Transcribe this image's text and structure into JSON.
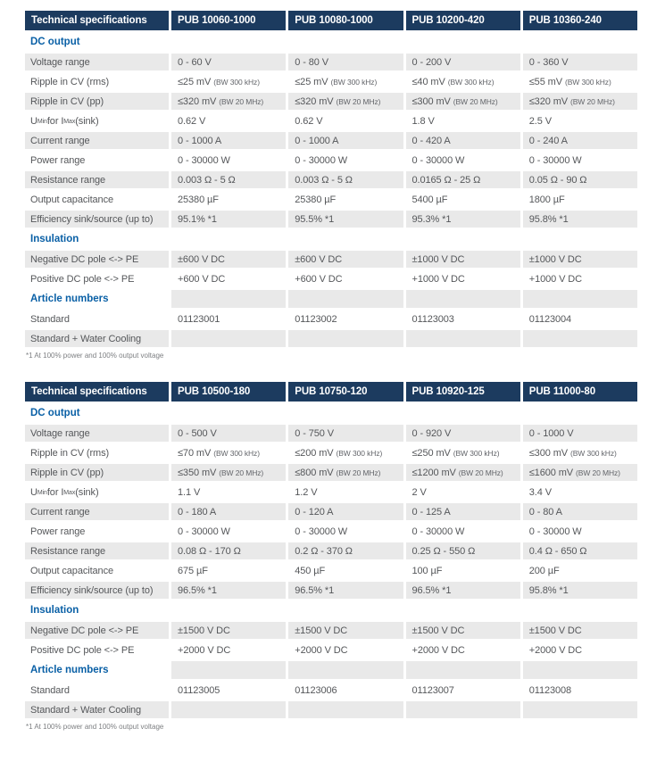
{
  "colors": {
    "header_bg": "#1c3b5f",
    "header_text": "#ffffff",
    "section_text": "#0a60a6",
    "row_shade": "#e9e9e9",
    "body_text": "#55575a"
  },
  "tables": [
    {
      "header": {
        "title": "Technical specifications",
        "products": [
          "PUB 10060-1000",
          "PUB 10080-1000",
          "PUB 10200-420",
          "PUB 10360-240"
        ]
      },
      "rows": [
        {
          "kind": "section",
          "label": "DC output"
        },
        {
          "kind": "data",
          "label": "Voltage range",
          "values": [
            "0 - 60 V",
            "0 - 80 V",
            "0 - 200 V",
            "0 - 360 V"
          ]
        },
        {
          "kind": "data",
          "label": "Ripple in CV (rms)",
          "values": [
            "≤25 mV",
            "≤25 mV",
            "≤40 mV",
            "≤55 mV"
          ],
          "value_note": "(BW 300 kHz)"
        },
        {
          "kind": "data",
          "label": "Ripple in CV (pp)",
          "values": [
            "≤320 mV",
            "≤320 mV",
            "≤300 mV",
            "≤320 mV"
          ],
          "value_note": "(BW 20 MHz)"
        },
        {
          "kind": "data",
          "label": "U_{Min} for I_{Max} (sink)",
          "values": [
            "0.62 V",
            "0.62 V",
            "1.8 V",
            "2.5 V"
          ]
        },
        {
          "kind": "data",
          "label": "Current range",
          "values": [
            "0 - 1000 A",
            "0 - 1000 A",
            "0 - 420 A",
            "0 - 240 A"
          ]
        },
        {
          "kind": "data",
          "label": "Power range",
          "values": [
            "0 - 30000 W",
            "0 - 30000 W",
            "0 - 30000 W",
            "0 - 30000 W"
          ]
        },
        {
          "kind": "data",
          "label": "Resistance range",
          "values": [
            "0.003 Ω - 5 Ω",
            "0.003 Ω - 5 Ω",
            "0.0165 Ω - 25 Ω",
            "0.05 Ω - 90 Ω"
          ]
        },
        {
          "kind": "data",
          "label": "Output capacitance",
          "values": [
            "25380 µF",
            "25380 µF",
            "5400 µF",
            "1800 µF"
          ]
        },
        {
          "kind": "data",
          "label": "Efficiency sink/source (up to)",
          "values": [
            "95.1% *1",
            "95.5% *1",
            "95.3% *1",
            "95.8% *1"
          ]
        },
        {
          "kind": "section",
          "label": "Insulation"
        },
        {
          "kind": "data",
          "label": "Negative DC pole <-> PE",
          "values": [
            "±600 V DC",
            "±600 V DC",
            "±1000 V DC",
            "±1000 V DC"
          ]
        },
        {
          "kind": "data",
          "label": "Positive DC pole <-> PE",
          "values": [
            "+600 V DC",
            "+600 V DC",
            "+1000 V DC",
            "+1000 V DC"
          ]
        },
        {
          "kind": "section",
          "label": "Article numbers"
        },
        {
          "kind": "data",
          "label": "Standard",
          "values": [
            "01123001",
            "01123002",
            "01123003",
            "01123004"
          ]
        },
        {
          "kind": "data",
          "label": "Standard + Water Cooling",
          "values": [
            "",
            "",
            "",
            ""
          ]
        }
      ],
      "footnote": "*1 At 100% power and 100% output voltage"
    },
    {
      "header": {
        "title": "Technical specifications",
        "products": [
          "PUB 10500-180",
          "PUB 10750-120",
          "PUB 10920-125",
          "PUB 11000-80"
        ]
      },
      "rows": [
        {
          "kind": "section",
          "label": "DC output"
        },
        {
          "kind": "data",
          "label": "Voltage range",
          "values": [
            "0 - 500 V",
            "0 - 750 V",
            "0 - 920 V",
            "0 - 1000 V"
          ]
        },
        {
          "kind": "data",
          "label": "Ripple in CV (rms)",
          "values": [
            "≤70 mV",
            "≤200 mV",
            "≤250 mV",
            "≤300 mV"
          ],
          "value_note": "(BW 300 kHz)"
        },
        {
          "kind": "data",
          "label": "Ripple in CV (pp)",
          "values": [
            "≤350 mV",
            "≤800 mV",
            "≤1200 mV",
            "≤1600 mV"
          ],
          "value_note": "(BW 20 MHz)"
        },
        {
          "kind": "data",
          "label": "U_{Min} for I_{Max} (sink)",
          "values": [
            "1.1 V",
            "1.2 V",
            "2 V",
            "3.4 V"
          ]
        },
        {
          "kind": "data",
          "label": "Current range",
          "values": [
            "0 - 180 A",
            "0 - 120 A",
            "0 - 125 A",
            "0 - 80 A"
          ]
        },
        {
          "kind": "data",
          "label": "Power range",
          "values": [
            "0 - 30000 W",
            "0 - 30000 W",
            "0 - 30000 W",
            "0 - 30000 W"
          ]
        },
        {
          "kind": "data",
          "label": "Resistance range",
          "values": [
            "0.08 Ω - 170 Ω",
            "0.2 Ω - 370 Ω",
            "0.25 Ω - 550 Ω",
            "0.4 Ω - 650 Ω"
          ]
        },
        {
          "kind": "data",
          "label": "Output capacitance",
          "values": [
            "675 µF",
            "450 µF",
            "100 µF",
            "200 µF"
          ]
        },
        {
          "kind": "data",
          "label": "Efficiency sink/source (up to)",
          "values": [
            "96.5% *1",
            "96.5% *1",
            "96.5% *1",
            "95.8% *1"
          ]
        },
        {
          "kind": "section",
          "label": "Insulation"
        },
        {
          "kind": "data",
          "label": "Negative DC pole <-> PE",
          "values": [
            "±1500 V DC",
            "±1500 V DC",
            "±1500 V DC",
            "±1500 V DC"
          ]
        },
        {
          "kind": "data",
          "label": "Positive DC pole <-> PE",
          "values": [
            "+2000 V DC",
            "+2000 V DC",
            "+2000 V DC",
            "+2000 V DC"
          ]
        },
        {
          "kind": "section",
          "label": "Article numbers"
        },
        {
          "kind": "data",
          "label": "Standard",
          "values": [
            "01123005",
            "01123006",
            "01123007",
            "01123008"
          ]
        },
        {
          "kind": "data",
          "label": "Standard + Water Cooling",
          "values": [
            "",
            "",
            "",
            ""
          ]
        }
      ],
      "footnote": "*1 At 100% power and 100% output voltage"
    }
  ]
}
